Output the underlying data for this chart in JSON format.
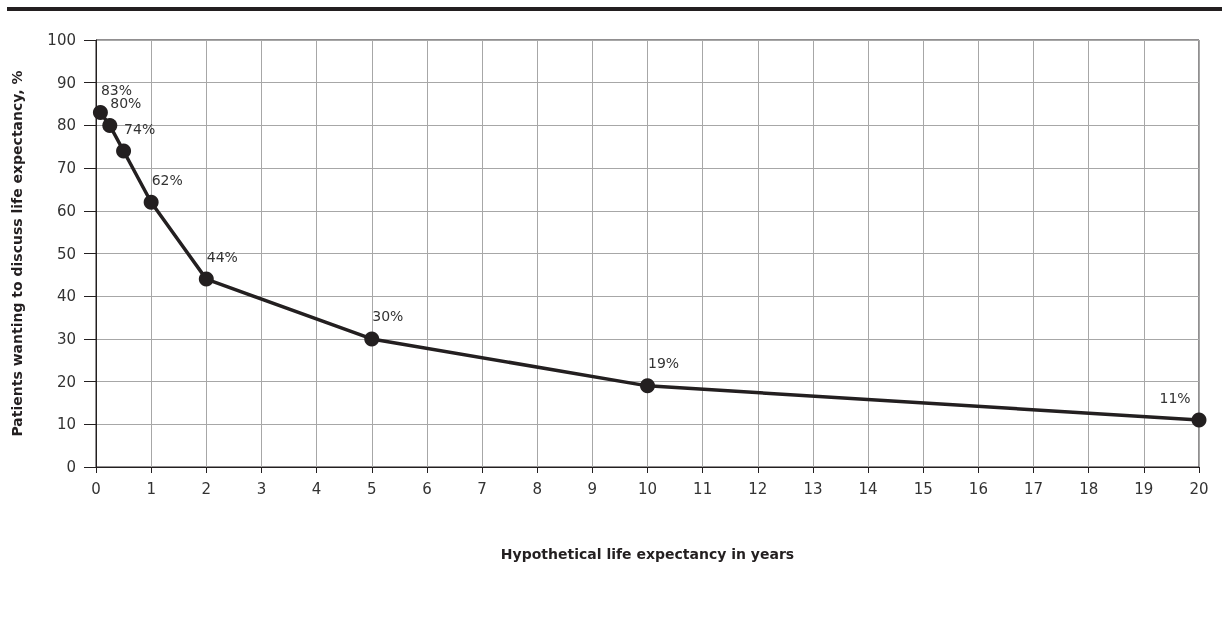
{
  "chart_data": {
    "type": "line",
    "xlabel": "Hypothetical life expectancy in years",
    "ylabel": "Patients wanting to discuss life expectancy, %",
    "x": [
      0.08,
      0.25,
      0.5,
      1,
      2,
      5,
      10,
      20
    ],
    "series": [
      {
        "color": "#231f20",
        "values": [
          83,
          80,
          74,
          62,
          44,
          30,
          19,
          11
        ],
        "value_labels": [
          "83%",
          "80%",
          "74%",
          "62%",
          "44%",
          "30%",
          "19%",
          "11%"
        ]
      }
    ],
    "xlim": [
      0,
      20
    ],
    "xticks": [
      0,
      1,
      2,
      3,
      4,
      5,
      6,
      7,
      8,
      9,
      10,
      11,
      12,
      13,
      14,
      15,
      16,
      17,
      18,
      19,
      20
    ],
    "ylim": [
      0,
      100
    ],
    "yticks": [
      0,
      10,
      20,
      30,
      40,
      50,
      60,
      70,
      80,
      90,
      100
    ],
    "grid": true,
    "marker": "circle",
    "line_style": "solid"
  }
}
